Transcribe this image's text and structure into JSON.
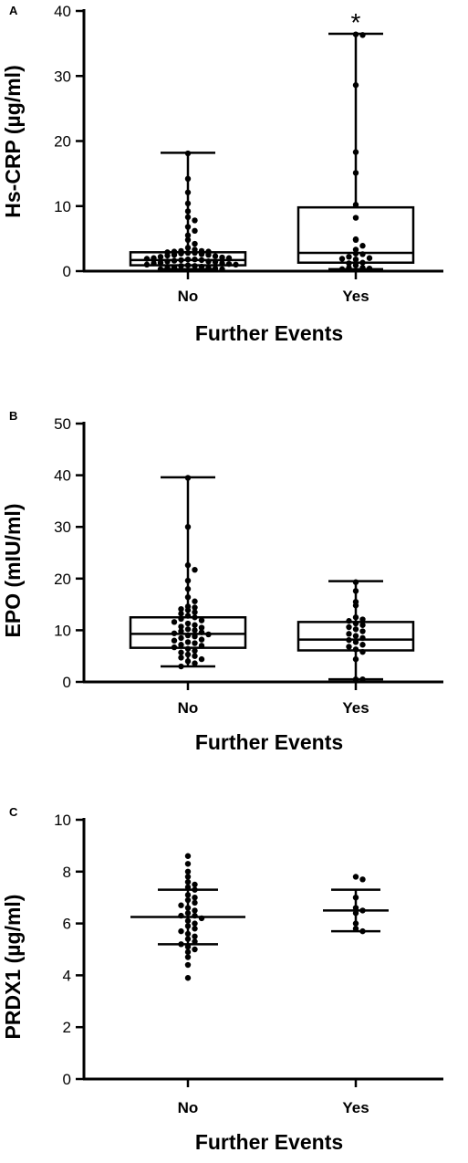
{
  "chart_data": [
    {
      "panel": "A",
      "type": "box",
      "categories": [
        "No",
        "Yes"
      ],
      "xlabel": "Further Events",
      "ylabel": "Hs-CRP (µg/ml)",
      "ylim": [
        0,
        40
      ],
      "yticks": [
        0,
        10,
        20,
        30,
        40
      ],
      "boxes": [
        {
          "category": "No",
          "min": 0.3,
          "q1": 0.9,
          "median": 1.7,
          "q3": 2.9,
          "max": 18.2
        },
        {
          "category": "Yes",
          "min": 0.3,
          "q1": 1.3,
          "median": 2.8,
          "q3": 9.8,
          "max": 36.5
        }
      ],
      "points": [
        {
          "category": "No",
          "values": [
            18.1,
            14.2,
            12.1,
            10.4,
            9.2,
            8.3,
            7.8,
            6.8,
            6.2,
            5.5,
            4.8,
            4.2,
            3.6,
            3.3,
            3.1,
            3.1,
            3.0,
            3.0,
            2.9,
            2.8,
            2.8,
            2.7,
            2.6,
            2.5,
            2.5,
            2.4,
            2.3,
            2.2,
            2.1,
            2.0,
            2.0,
            1.9,
            1.8,
            1.8,
            1.7,
            1.7,
            1.6,
            1.5,
            1.5,
            1.4,
            1.3,
            1.2,
            1.2,
            1.1,
            1.0,
            1.0,
            0.9,
            0.8,
            0.8,
            0.7,
            0.6,
            0.5,
            0.5,
            0.4,
            0.3,
            0.3
          ]
        },
        {
          "category": "Yes",
          "values": [
            36.4,
            36.3,
            28.6,
            18.3,
            15.1,
            10.2,
            8.2,
            4.9,
            4.8,
            3.9,
            3.3,
            2.7,
            2.6,
            2.2,
            2.0,
            1.9,
            1.8,
            1.3,
            1.2,
            0.9,
            0.5,
            0.5,
            0.4,
            0.3
          ]
        }
      ],
      "annotations": [
        {
          "category": "Yes",
          "text": "*"
        }
      ]
    },
    {
      "panel": "B",
      "type": "box",
      "categories": [
        "No",
        "Yes"
      ],
      "xlabel": "Further Events",
      "ylabel": "EPO (mIU/ml)",
      "ylim": [
        0,
        50
      ],
      "yticks": [
        0,
        10,
        20,
        30,
        40,
        50
      ],
      "boxes": [
        {
          "category": "No",
          "min": 3.0,
          "q1": 6.6,
          "median": 9.3,
          "q3": 12.5,
          "max": 39.6
        },
        {
          "category": "Yes",
          "min": 0.5,
          "q1": 6.1,
          "median": 8.2,
          "q3": 11.6,
          "max": 19.5
        }
      ],
      "points": [
        {
          "category": "No",
          "values": [
            39.5,
            30.0,
            22.6,
            21.7,
            19.6,
            18.0,
            16.4,
            15.6,
            14.6,
            14.4,
            14.1,
            13.9,
            13.5,
            13.2,
            12.8,
            12.5,
            12.2,
            11.9,
            11.6,
            11.3,
            11.0,
            10.7,
            10.5,
            10.2,
            10.0,
            9.8,
            9.6,
            9.4,
            9.2,
            9.0,
            8.8,
            8.5,
            8.2,
            8.0,
            7.7,
            7.5,
            7.2,
            7.0,
            6.7,
            6.4,
            6.0,
            5.7,
            5.3,
            5.0,
            4.7,
            4.4,
            4.0,
            3.6,
            3.0
          ]
        },
        {
          "category": "Yes",
          "values": [
            19.3,
            17.6,
            15.5,
            14.8,
            12.5,
            12.1,
            11.8,
            11.3,
            11.0,
            10.6,
            10.2,
            9.8,
            9.3,
            8.9,
            8.5,
            8.1,
            7.7,
            7.2,
            6.8,
            6.3,
            5.8,
            4.4,
            0.5,
            0.5
          ]
        }
      ]
    },
    {
      "panel": "C",
      "type": "scatter",
      "categories": [
        "No",
        "Yes"
      ],
      "xlabel": "Further Events",
      "ylabel": "PRDX1 (µg/ml)",
      "ylim": [
        0,
        10
      ],
      "yticks": [
        0,
        2,
        4,
        6,
        8,
        10
      ],
      "summary": [
        {
          "category": "No",
          "mean": 6.25,
          "upper": 7.3,
          "lower": 5.2
        },
        {
          "category": "Yes",
          "mean": 6.5,
          "upper": 7.3,
          "lower": 5.7
        }
      ],
      "points": [
        {
          "category": "No",
          "values": [
            8.6,
            8.3,
            8.0,
            7.8,
            7.6,
            7.5,
            7.4,
            7.3,
            7.1,
            7.0,
            6.9,
            6.8,
            6.7,
            6.6,
            6.5,
            6.4,
            6.3,
            6.3,
            6.2,
            6.1,
            6.0,
            5.9,
            5.8,
            5.7,
            5.6,
            5.5,
            5.4,
            5.3,
            5.2,
            5.1,
            5.0,
            4.9,
            4.7,
            4.4,
            3.9
          ]
        },
        {
          "category": "Yes",
          "values": [
            7.8,
            7.7,
            7.0,
            6.6,
            6.5,
            6.4,
            6.0,
            5.8,
            5.7
          ]
        }
      ]
    }
  ]
}
